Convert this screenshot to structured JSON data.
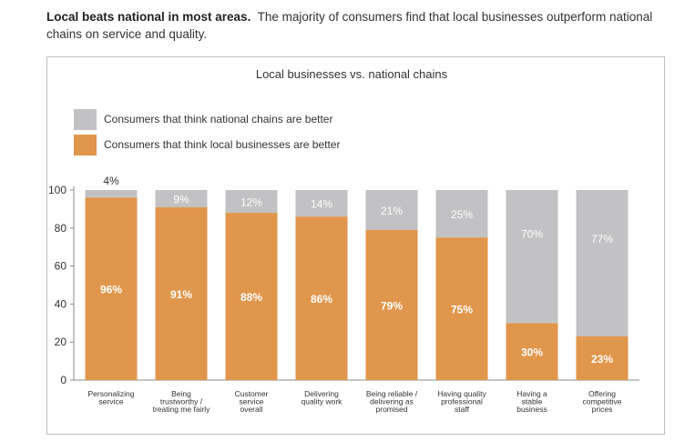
{
  "headline": {
    "bold": "Local beats national in most areas.",
    "rest": "The majority of consumers find that local businesses outperform national chains on service and quality."
  },
  "colors": {
    "national": "#c2c2c4",
    "local": "#e0964b",
    "axis": "#888888",
    "text": "#333333"
  },
  "chart_data": {
    "type": "bar",
    "stacked": true,
    "title": "Local businesses vs. national chains",
    "xlabel": "",
    "ylabel": "",
    "ylim": [
      0,
      100
    ],
    "yticks": [
      0,
      20,
      40,
      60,
      80,
      100
    ],
    "grid": false,
    "legend_position": "top-left",
    "categories": [
      [
        "Personalizing",
        "service"
      ],
      [
        "Being",
        "trustworthy /",
        "treating me fairly"
      ],
      [
        "Customer",
        "service",
        "overall"
      ],
      [
        "Delivering",
        "quality work"
      ],
      [
        "Being reliable /",
        "delivering as",
        "promised"
      ],
      [
        "Having quality",
        "professional",
        "staff"
      ],
      [
        "Having a",
        "stable",
        "business"
      ],
      [
        "Offering",
        "competitive",
        "prices"
      ]
    ],
    "series": [
      {
        "name": "Consumers that think local businesses are better",
        "values": [
          96,
          91,
          88,
          86,
          79,
          75,
          30,
          23
        ],
        "labels": [
          "96%",
          "91%",
          "88%",
          "86%",
          "79%",
          "75%",
          "30%",
          "23%"
        ]
      },
      {
        "name": "Consumers that think national chains are better",
        "values": [
          4,
          9,
          12,
          14,
          21,
          25,
          70,
          77
        ],
        "labels": [
          "4%",
          "9%",
          "12%",
          "14%",
          "21%",
          "25%",
          "70%",
          "77%"
        ]
      }
    ]
  }
}
